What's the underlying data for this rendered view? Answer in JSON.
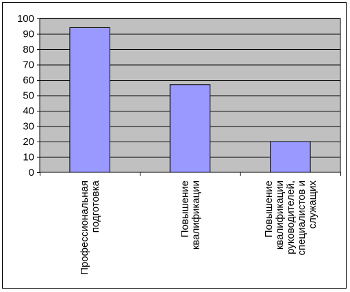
{
  "chart_data": {
    "type": "bar",
    "title": "",
    "xlabel": "",
    "ylabel": "",
    "ylim": [
      0,
      100
    ],
    "yticks": [
      0,
      10,
      20,
      30,
      40,
      50,
      60,
      70,
      80,
      90,
      100
    ],
    "ytick_labels": [
      "0",
      "10",
      "20",
      "30",
      "40",
      "50",
      "60",
      "70",
      "80",
      "90",
      "100"
    ],
    "grid": true,
    "legend": "none",
    "categories": [
      [
        "Профессиональная",
        "подготовка"
      ],
      [
        "Повышение",
        "квалификации"
      ],
      [
        "Повышение",
        "квалификации",
        "руководителей,",
        "специалистов и",
        "служащих"
      ]
    ],
    "values": [
      94,
      57,
      20
    ],
    "colors": {
      "plot_background": "#c0c0c0",
      "bar_fill": "#9999ff",
      "bar_stroke": "#000000",
      "gridline": "#000000",
      "axis": "#000000"
    }
  }
}
